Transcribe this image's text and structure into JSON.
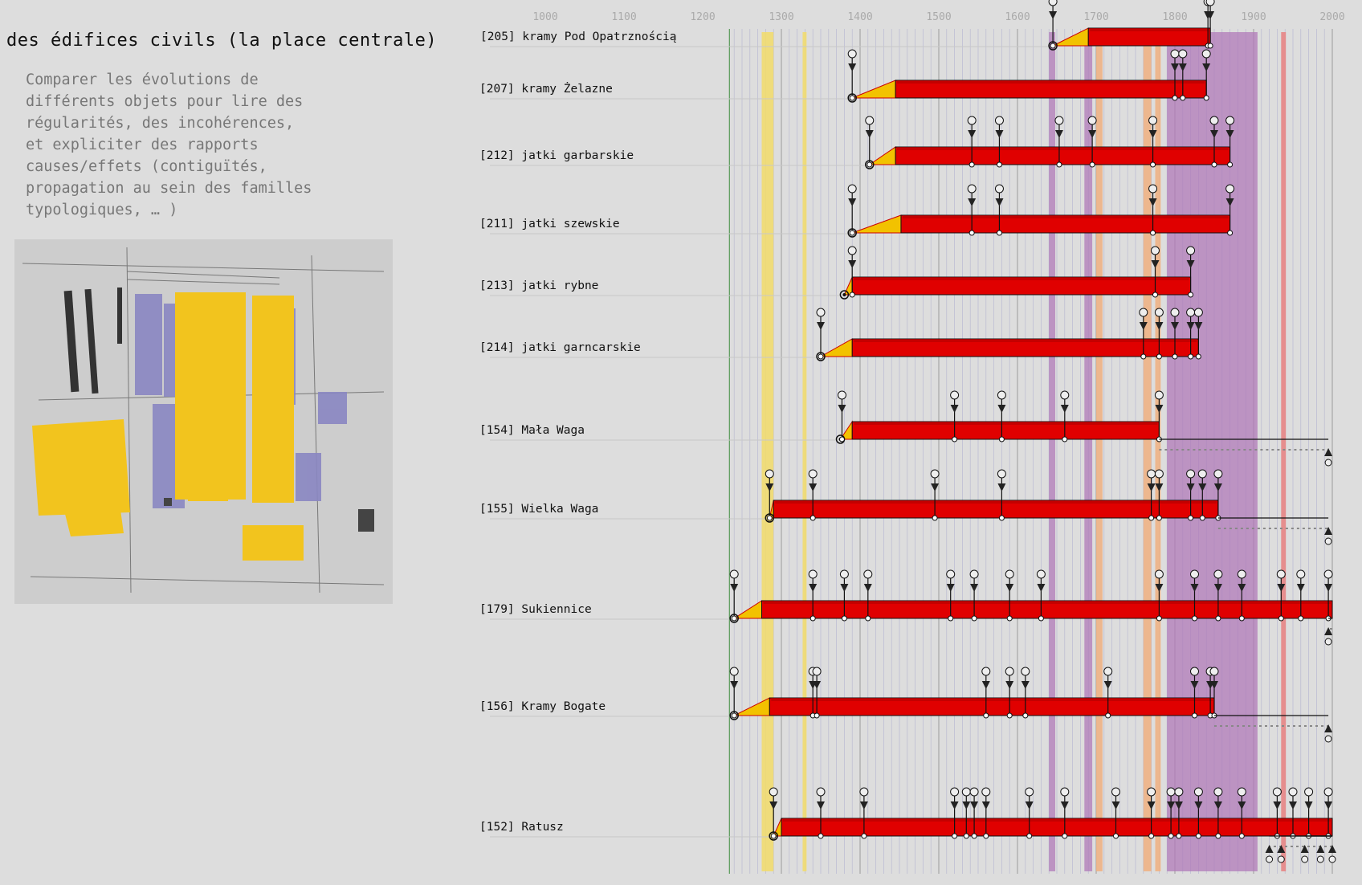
{
  "header": {
    "title": "des édifices civils (la place centrale)",
    "description": "Comparer les évolutions de\ndifférents objets pour lire des\nrégularités, des incohérences,\net expliciter des rapports\ncauses/effets (contiguïtés,\npropagation au sein des familles\ntypologiques, … )"
  },
  "colors": {
    "bar": "#e00000",
    "bar_top": "#b00000",
    "ramp": "#f2c200",
    "plan_yellow": "#f2c41e",
    "plan_blue": "#8a87c2",
    "band_purple": "#b07ab8",
    "band_yellow": "#f2dc6a",
    "band_orange": "#f0b080",
    "band_red": "#e88080"
  },
  "chart_data": {
    "type": "timeline",
    "x_axis": {
      "ticks": [
        1000,
        1100,
        1200,
        1300,
        1400,
        1500,
        1600,
        1700,
        1800,
        1900,
        2000
      ],
      "range": [
        1000,
        2000
      ]
    },
    "rows": [
      {
        "label": "[205] kramy Pod Opatrznością",
        "ramp_start": 1645,
        "start": 1690,
        "end": 1845,
        "events_top": [
          1645,
          1842,
          1845
        ],
        "events_bottom": []
      },
      {
        "label": "[207] kramy Żelazne",
        "ramp_start": 1390,
        "start": 1445,
        "end": 1840,
        "events_top": [
          1390,
          1800,
          1810,
          1840
        ],
        "events_bottom": []
      },
      {
        "label": "[212] jatki garbarskie",
        "ramp_start": 1412,
        "start": 1445,
        "end": 1870,
        "events_top": [
          1412,
          1542,
          1577,
          1653,
          1695,
          1772,
          1850,
          1870
        ],
        "events_bottom": []
      },
      {
        "label": "[211] jatki szewskie",
        "ramp_start": 1390,
        "start": 1452,
        "end": 1870,
        "events_top": [
          1390,
          1542,
          1577,
          1772,
          1870
        ],
        "events_bottom": []
      },
      {
        "label": "[213] jatki rybne",
        "ramp_start": 1380,
        "start": 1390,
        "end": 1820,
        "events_top": [
          1390,
          1775,
          1820
        ],
        "events_bottom": []
      },
      {
        "label": "[214] jatki garncarskie",
        "ramp_start": 1350,
        "start": 1390,
        "end": 1830,
        "events_top": [
          1350,
          1760,
          1780,
          1800,
          1820,
          1830
        ],
        "events_bottom": []
      },
      {
        "label": "[154] Mała Waga",
        "ramp_start": 1375,
        "start": 1390,
        "end": 1780,
        "events_top": [
          1377,
          1520,
          1580,
          1660,
          1780
        ],
        "events_bottom": [
          1995
        ]
      },
      {
        "label": "[155] Wielka Waga",
        "ramp_start": 1285,
        "start": 1290,
        "end": 1855,
        "events_top": [
          1285,
          1340,
          1495,
          1580,
          1770,
          1780,
          1820,
          1835,
          1855
        ],
        "events_bottom": [
          1995
        ]
      },
      {
        "label": "[179] Sukiennice",
        "ramp_start": 1240,
        "start": 1275,
        "end": 2000,
        "events_top": [
          1240,
          1340,
          1380,
          1410,
          1515,
          1545,
          1590,
          1630,
          1780,
          1825,
          1855,
          1885,
          1935,
          1960,
          1995
        ],
        "events_bottom": [
          1995
        ]
      },
      {
        "label": "[156] Kramy Bogate",
        "ramp_start": 1240,
        "start": 1285,
        "end": 1850,
        "events_top": [
          1240,
          1340,
          1345,
          1560,
          1590,
          1610,
          1715,
          1825,
          1845,
          1850
        ],
        "events_bottom": [
          1995
        ]
      },
      {
        "label": "[152] Ratusz",
        "ramp_start": 1290,
        "start": 1300,
        "end": 2000,
        "events_top": [
          1290,
          1350,
          1405,
          1520,
          1535,
          1545,
          1560,
          1615,
          1660,
          1725,
          1770,
          1795,
          1805,
          1830,
          1855,
          1885,
          1930,
          1950,
          1970,
          1995
        ],
        "events_bottom": [
          1920,
          1935,
          1965,
          1985,
          2000
        ]
      }
    ],
    "bands": [
      {
        "color": "band_yellow",
        "from": 1275,
        "to": 1290
      },
      {
        "color": "band_yellow",
        "from": 1327,
        "to": 1332
      },
      {
        "color": "band_purple",
        "from": 1640,
        "to": 1648
      },
      {
        "color": "band_purple",
        "from": 1685,
        "to": 1695
      },
      {
        "color": "band_orange",
        "from": 1700,
        "to": 1708
      },
      {
        "color": "band_orange",
        "from": 1760,
        "to": 1770
      },
      {
        "color": "band_orange",
        "from": 1775,
        "to": 1782
      },
      {
        "color": "band_purple",
        "from": 1790,
        "to": 1905
      },
      {
        "color": "band_red",
        "from": 1935,
        "to": 1941
      }
    ]
  }
}
